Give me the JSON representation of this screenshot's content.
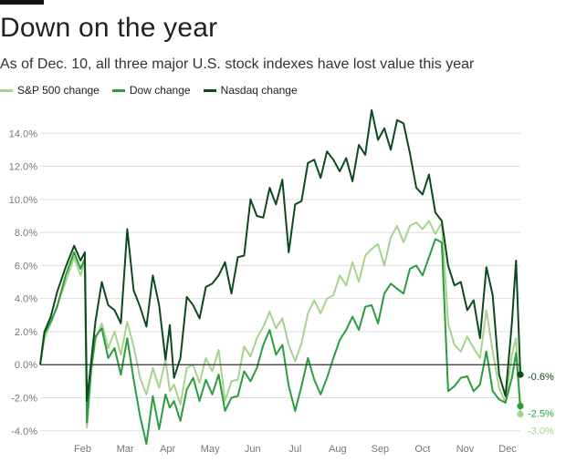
{
  "header": {
    "title": "Down on the year",
    "subtitle": "As of Dec. 10, all three major U.S. stock indexes have lost value this year"
  },
  "colors": {
    "sp500": "#a6d38d",
    "dow": "#2a9d3e",
    "nasdaq": "#0b4a1c",
    "grid": "#dddddd",
    "zero_line": "#333333",
    "axis_text": "#777777"
  },
  "chart_data": {
    "type": "line",
    "title": "Down on the year",
    "subtitle": "As of Dec. 10, all three major U.S. stock indexes have lost value this year",
    "xlabel": "",
    "ylabel": "",
    "ylim": [
      -5.5,
      16
    ],
    "x_range": [
      0,
      11.3
    ],
    "y_ticks": [
      -4,
      -2,
      0,
      2,
      4,
      6,
      8,
      10,
      12,
      14
    ],
    "y_tick_labels": [
      "-4.0%",
      "-2.0%",
      "0.0%",
      "2.0%",
      "4.0%",
      "6.0%",
      "8.0%",
      "10.0%",
      "12.0%",
      "14.0%"
    ],
    "x_ticks": [
      1,
      2,
      3,
      4,
      5,
      6,
      7,
      8,
      9,
      10,
      11
    ],
    "x_tick_labels": [
      "Feb",
      "Mar",
      "Apr",
      "May",
      "Jun",
      "Jul",
      "Aug",
      "Sep",
      "Oct",
      "Nov",
      "Dec"
    ],
    "grid": true,
    "legend_position": "top-left",
    "series": [
      {
        "name": "S&P 500 change",
        "color_key": "sp500",
        "end_label": "-3.0%",
        "x": [
          0,
          0.1,
          0.25,
          0.4,
          0.6,
          0.8,
          0.95,
          1.05,
          1.1,
          1.2,
          1.3,
          1.45,
          1.6,
          1.75,
          1.9,
          2.05,
          2.2,
          2.35,
          2.5,
          2.65,
          2.8,
          2.95,
          3.05,
          3.15,
          3.3,
          3.45,
          3.6,
          3.75,
          3.9,
          4.05,
          4.2,
          4.35,
          4.5,
          4.65,
          4.8,
          4.95,
          5.1,
          5.25,
          5.4,
          5.55,
          5.7,
          5.85,
          6.0,
          6.15,
          6.3,
          6.45,
          6.6,
          6.75,
          6.9,
          7.05,
          7.2,
          7.35,
          7.5,
          7.65,
          7.8,
          7.95,
          8.1,
          8.25,
          8.4,
          8.55,
          8.7,
          8.85,
          9.0,
          9.15,
          9.3,
          9.45,
          9.6,
          9.75,
          9.9,
          10.05,
          10.2,
          10.35,
          10.5,
          10.65,
          10.8,
          10.95,
          11.1,
          11.2,
          11.3
        ],
        "values": [
          0,
          1.6,
          2.5,
          3.6,
          5.0,
          6.5,
          5.4,
          6.2,
          -3.8,
          -0.5,
          1.5,
          2.5,
          1.0,
          2.0,
          0.6,
          2.6,
          1.1,
          -0.8,
          -1.8,
          -0.2,
          -1.4,
          0.3,
          -1.6,
          -1.2,
          -2.4,
          -0.2,
          0.0,
          -1.1,
          0.4,
          -0.4,
          0.9,
          -2.2,
          -1.0,
          -0.9,
          1.1,
          0.5,
          1.6,
          2.3,
          3.2,
          2.2,
          2.8,
          1.2,
          0.2,
          1.3,
          3.1,
          3.9,
          3.1,
          4.0,
          4.2,
          5.4,
          4.8,
          6.2,
          5.0,
          6.6,
          7.0,
          7.3,
          6.0,
          7.7,
          8.4,
          7.4,
          8.4,
          8.6,
          8.2,
          8.7,
          7.9,
          8.6,
          2.5,
          1.2,
          0.8,
          1.7,
          1.0,
          0.4,
          3.3,
          0.8,
          -1.4,
          -2.3,
          0.6,
          1.6,
          -3.0
        ]
      },
      {
        "name": "Dow change",
        "color_key": "dow",
        "end_label": "-2.5%",
        "x": [
          0,
          0.1,
          0.25,
          0.4,
          0.6,
          0.8,
          0.95,
          1.05,
          1.1,
          1.2,
          1.3,
          1.45,
          1.6,
          1.75,
          1.9,
          2.05,
          2.2,
          2.35,
          2.5,
          2.65,
          2.8,
          2.95,
          3.05,
          3.15,
          3.3,
          3.45,
          3.6,
          3.75,
          3.9,
          4.05,
          4.2,
          4.35,
          4.5,
          4.65,
          4.8,
          4.95,
          5.1,
          5.25,
          5.4,
          5.55,
          5.7,
          5.85,
          6.0,
          6.15,
          6.3,
          6.45,
          6.6,
          6.75,
          6.9,
          7.05,
          7.2,
          7.35,
          7.5,
          7.65,
          7.8,
          7.95,
          8.1,
          8.25,
          8.4,
          8.55,
          8.7,
          8.85,
          9.0,
          9.15,
          9.3,
          9.45,
          9.6,
          9.75,
          9.9,
          10.05,
          10.2,
          10.35,
          10.5,
          10.65,
          10.8,
          10.95,
          11.1,
          11.2,
          11.3
        ],
        "values": [
          0,
          1.9,
          2.6,
          3.5,
          5.4,
          6.8,
          5.8,
          6.4,
          -3.5,
          -0.2,
          1.7,
          2.2,
          0.4,
          1.0,
          -0.6,
          1.6,
          -0.9,
          -3.1,
          -4.8,
          -1.9,
          -3.9,
          -1.8,
          -2.6,
          -2.2,
          -3.4,
          -1.5,
          -0.8,
          -2.2,
          -0.9,
          -1.8,
          -0.6,
          -2.8,
          -2.0,
          -1.9,
          -0.4,
          -1.0,
          -0.2,
          1.2,
          2.1,
          0.6,
          1.2,
          -1.3,
          -2.8,
          -1.3,
          0.4,
          -0.9,
          -1.8,
          -0.8,
          0.4,
          1.5,
          2.1,
          2.9,
          2.1,
          3.5,
          3.6,
          2.5,
          4.3,
          4.9,
          4.6,
          4.3,
          5.8,
          6.0,
          5.4,
          6.5,
          7.6,
          7.4,
          -1.6,
          -1.3,
          -0.8,
          -0.7,
          -1.6,
          -1.2,
          0.8,
          -1.6,
          -2.1,
          -2.3,
          -0.8,
          0.7,
          -2.5
        ]
      },
      {
        "name": "Nasdaq change",
        "color_key": "nasdaq",
        "end_label": "-0.6%",
        "x": [
          0,
          0.1,
          0.25,
          0.4,
          0.6,
          0.8,
          0.95,
          1.05,
          1.1,
          1.2,
          1.3,
          1.45,
          1.6,
          1.75,
          1.9,
          2.05,
          2.2,
          2.35,
          2.5,
          2.65,
          2.8,
          2.95,
          3.05,
          3.15,
          3.3,
          3.45,
          3.6,
          3.75,
          3.9,
          4.05,
          4.2,
          4.35,
          4.5,
          4.65,
          4.8,
          4.95,
          5.1,
          5.25,
          5.4,
          5.55,
          5.7,
          5.85,
          6.0,
          6.15,
          6.3,
          6.45,
          6.6,
          6.75,
          6.9,
          7.05,
          7.2,
          7.35,
          7.5,
          7.65,
          7.8,
          7.95,
          8.1,
          8.25,
          8.4,
          8.55,
          8.7,
          8.85,
          9.0,
          9.15,
          9.3,
          9.45,
          9.6,
          9.75,
          9.9,
          10.05,
          10.2,
          10.35,
          10.5,
          10.65,
          10.8,
          10.95,
          11.1,
          11.2,
          11.3
        ],
        "values": [
          0,
          2.0,
          2.9,
          4.4,
          5.9,
          7.2,
          6.3,
          6.8,
          -2.2,
          0.2,
          2.6,
          5.0,
          3.6,
          3.3,
          2.5,
          8.2,
          4.5,
          3.5,
          2.3,
          5.4,
          3.6,
          0.3,
          2.4,
          -0.8,
          0.4,
          4.1,
          3.6,
          2.8,
          4.7,
          4.9,
          5.4,
          6.2,
          4.3,
          6.5,
          6.6,
          10.0,
          9.0,
          8.9,
          10.7,
          9.7,
          11.2,
          6.8,
          9.7,
          9.9,
          12.2,
          12.4,
          11.3,
          12.9,
          12.4,
          11.7,
          12.5,
          11.1,
          13.3,
          12.7,
          15.4,
          13.6,
          14.3,
          13.0,
          14.8,
          14.6,
          12.8,
          10.7,
          10.3,
          11.5,
          9.2,
          8.7,
          6.0,
          4.8,
          5.0,
          3.3,
          3.9,
          1.6,
          5.9,
          4.2,
          -0.6,
          -1.9,
          2.5,
          6.3,
          -0.6
        ]
      }
    ]
  }
}
